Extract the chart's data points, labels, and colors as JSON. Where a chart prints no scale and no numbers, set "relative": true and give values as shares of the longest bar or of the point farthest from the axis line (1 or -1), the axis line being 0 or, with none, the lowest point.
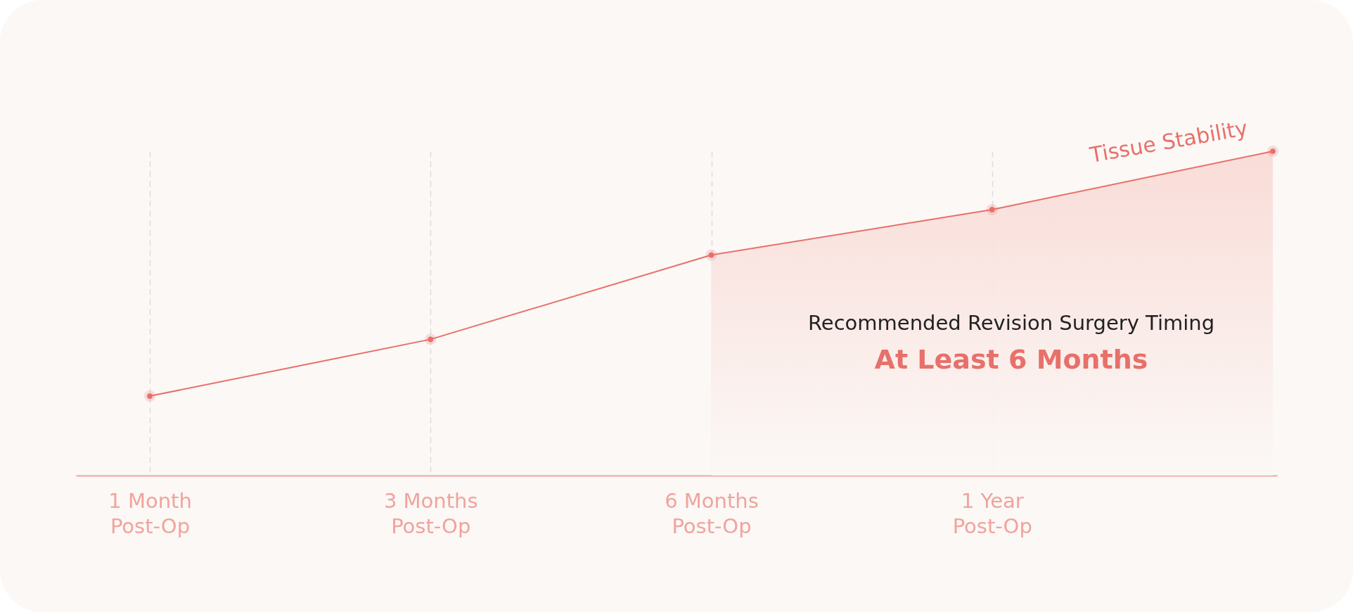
{
  "chart_data": {
    "type": "line",
    "relative": true,
    "categories": [
      "1 Month Post-Op",
      "3 Months Post-Op",
      "6 Months Post-Op",
      "1 Year Post-Op",
      null
    ],
    "series": [
      {
        "name": "Tissue Stability",
        "color": "#e8706a",
        "values": [
          0.245,
          0.42,
          0.68,
          0.82,
          1.0
        ]
      },
      {
        "type": "area",
        "color": "#f9d9d4",
        "values": [
          null,
          null,
          0.68,
          0.82,
          1.0
        ]
      }
    ],
    "annotations": [
      "Recommended Revision Surgery Timing",
      "At Least 6 Months"
    ],
    "marker": "circle",
    "grid": "x"
  }
}
